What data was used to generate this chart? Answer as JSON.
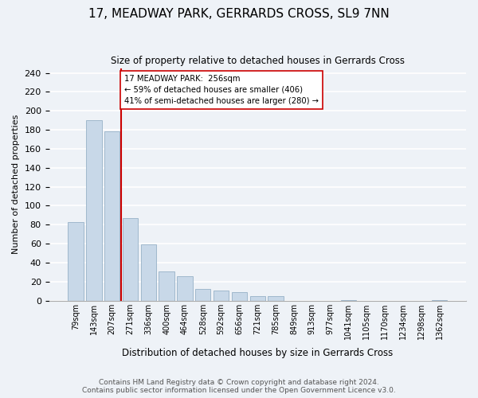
{
  "title": "17, MEADWAY PARK, GERRARDS CROSS, SL9 7NN",
  "subtitle": "Size of property relative to detached houses in Gerrards Cross",
  "xlabel": "Distribution of detached houses by size in Gerrards Cross",
  "ylabel": "Number of detached properties",
  "bar_labels": [
    "79sqm",
    "143sqm",
    "207sqm",
    "271sqm",
    "336sqm",
    "400sqm",
    "464sqm",
    "528sqm",
    "592sqm",
    "656sqm",
    "721sqm",
    "785sqm",
    "849sqm",
    "913sqm",
    "977sqm",
    "1041sqm",
    "1105sqm",
    "1170sqm",
    "1234sqm",
    "1298sqm",
    "1362sqm"
  ],
  "bar_values": [
    83,
    190,
    178,
    87,
    59,
    31,
    26,
    12,
    11,
    9,
    5,
    5,
    0,
    0,
    0,
    1,
    0,
    0,
    0,
    0,
    1
  ],
  "bar_color": "#c8d8e8",
  "bar_edge_color": "#a0b8cc",
  "vline_x": 2.5,
  "vline_color": "#cc0000",
  "annotation_box_text": "17 MEADWAY PARK:  256sqm\n← 59% of detached houses are smaller (406)\n41% of semi-detached houses are larger (280) →",
  "annotation_box_color": "#ffffff",
  "annotation_box_edge_color": "#cc0000",
  "ylim": [
    0,
    245
  ],
  "yticks": [
    0,
    20,
    40,
    60,
    80,
    100,
    120,
    140,
    160,
    180,
    200,
    220,
    240
  ],
  "footer_text": "Contains HM Land Registry data © Crown copyright and database right 2024.\nContains public sector information licensed under the Open Government Licence v3.0.",
  "bg_color": "#eef2f7",
  "plot_bg_color": "#eef2f7",
  "grid_color": "#ffffff"
}
